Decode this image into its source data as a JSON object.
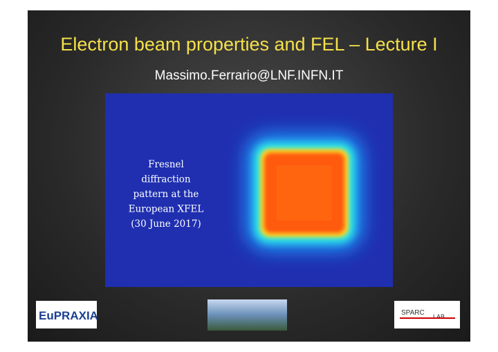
{
  "header": {
    "title": "Electron beam properties and FEL – Lecture I",
    "subtitle": "Massimo.Ferrario@LNF.INFN.IT"
  },
  "figure": {
    "caption": [
      "Fresnel",
      "diffraction",
      "pattern at the",
      "European XFEL",
      "(30 June 2017)"
    ]
  },
  "logos": {
    "left": "EuPRAXIA",
    "right": [
      "SPARC",
      "LAB"
    ]
  }
}
